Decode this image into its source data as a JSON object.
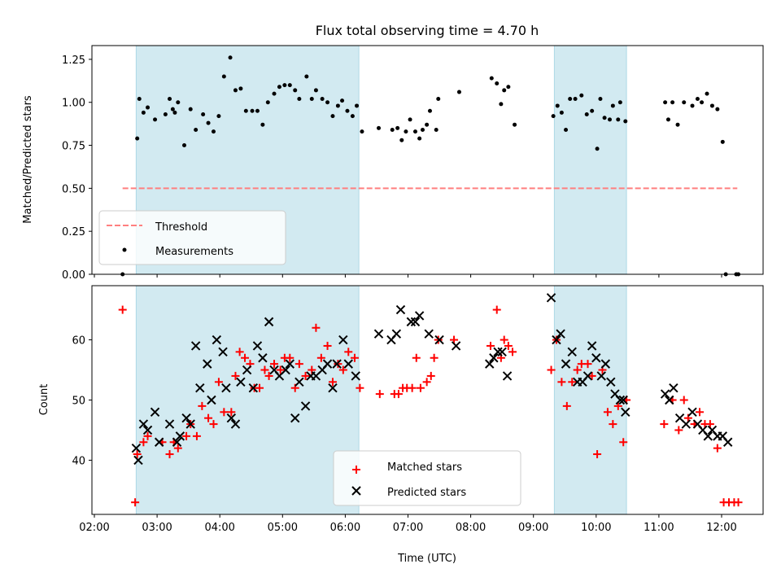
{
  "chart_data": [
    {
      "type": "scatter",
      "title": "Flux total observing time = 4.70 h",
      "xlabel": "",
      "ylabel": "Matched/Predicted stars",
      "xlim": [
        "02:00",
        "12:45"
      ],
      "ylim": [
        0,
        1.33
      ],
      "yticks": [
        "0.00",
        "0.25",
        "0.50",
        "0.75",
        "1.00",
        "1.25"
      ],
      "shaded_intervals": [
        [
          "02:40",
          "06:13"
        ],
        [
          "09:20",
          "10:29"
        ]
      ],
      "shade_color": "#add8e6",
      "grid": false,
      "legend": "lower-left",
      "legend_entries": [
        "Threshold",
        "Measurements"
      ],
      "threshold": {
        "name": "Threshold",
        "y": 0.5,
        "x_range": [
          "02:27",
          "12:15"
        ],
        "color": "#ff7f7f",
        "style": "dashed"
      },
      "series": [
        {
          "name": "Measurements",
          "color": "#000000",
          "marker": "dot",
          "x": [
            "02:27",
            "02:41",
            "02:43",
            "02:47",
            "02:51",
            "02:58",
            "03:08",
            "03:12",
            "03:15",
            "03:17",
            "03:20",
            "03:26",
            "03:32",
            "03:37",
            "03:44",
            "03:49",
            "03:54",
            "03:59",
            "04:04",
            "04:10",
            "04:15",
            "04:20",
            "04:25",
            "04:31",
            "04:36",
            "04:41",
            "04:46",
            "04:52",
            "04:57",
            "05:02",
            "05:07",
            "05:12",
            "05:16",
            "05:23",
            "05:28",
            "05:32",
            "05:38",
            "05:43",
            "05:48",
            "05:53",
            "05:57",
            "06:02",
            "06:07",
            "06:11",
            "06:16",
            "06:32",
            "06:45",
            "06:50",
            "06:54",
            "06:58",
            "07:02",
            "07:07",
            "07:11",
            "07:14",
            "07:18",
            "07:21",
            "07:27",
            "07:29",
            "07:49",
            "08:20",
            "08:25",
            "08:29",
            "08:32",
            "08:36",
            "08:42",
            "09:19",
            "09:23",
            "09:27",
            "09:31",
            "09:35",
            "09:40",
            "09:46",
            "09:51",
            "09:56",
            "10:01",
            "10:04",
            "10:08",
            "10:13",
            "10:16",
            "10:21",
            "10:23",
            "10:28",
            "11:06",
            "11:09",
            "11:13",
            "11:18",
            "11:24",
            "11:32",
            "11:37",
            "11:41",
            "11:46",
            "11:51",
            "11:56",
            "12:01",
            "12:04",
            "12:14",
            "12:16"
          ],
          "y": [
            0.0,
            0.79,
            1.02,
            0.94,
            0.97,
            0.9,
            0.93,
            1.02,
            0.96,
            0.94,
            1.0,
            0.75,
            0.96,
            0.84,
            0.93,
            0.88,
            0.83,
            0.92,
            1.15,
            1.26,
            1.07,
            1.08,
            0.95,
            0.95,
            0.95,
            0.87,
            1.0,
            1.05,
            1.09,
            1.1,
            1.1,
            1.07,
            1.02,
            1.15,
            1.02,
            1.07,
            1.02,
            1.0,
            0.92,
            0.98,
            1.01,
            0.95,
            0.92,
            0.98,
            0.83,
            0.85,
            0.84,
            0.85,
            0.78,
            0.83,
            0.9,
            0.83,
            0.79,
            0.84,
            0.87,
            0.95,
            0.84,
            1.02,
            1.06,
            1.14,
            1.11,
            0.99,
            1.07,
            1.09,
            0.87,
            0.92,
            0.98,
            0.94,
            0.84,
            1.02,
            1.02,
            1.04,
            0.93,
            0.95,
            0.73,
            1.02,
            0.91,
            0.9,
            0.98,
            0.9,
            1.0,
            0.89,
            1.0,
            0.9,
            1.0,
            0.87,
            1.0,
            0.98,
            1.02,
            1.0,
            1.05,
            0.98,
            0.96,
            0.77,
            0.0,
            0.0,
            0.0
          ]
        }
      ]
    },
    {
      "type": "scatter",
      "title": "",
      "xlabel": "Time (UTC)",
      "ylabel": "Count",
      "xlim": [
        "02:00",
        "12:45"
      ],
      "ylim": [
        31,
        69
      ],
      "yticks": [
        "40",
        "50",
        "60"
      ],
      "xticks": [
        "02:00",
        "03:00",
        "04:00",
        "05:00",
        "06:00",
        "07:00",
        "08:00",
        "09:00",
        "10:00",
        "11:00",
        "12:00"
      ],
      "shaded_intervals": [
        [
          "02:40",
          "06:13"
        ],
        [
          "09:20",
          "10:29"
        ]
      ],
      "shade_color": "#add8e6",
      "grid": false,
      "legend": "lower-center",
      "legend_entries": [
        "Matched stars",
        "Predicted stars"
      ],
      "series": [
        {
          "name": "Matched stars",
          "color": "#ff0000",
          "marker": "plus",
          "x": [
            "02:27",
            "02:39",
            "02:41",
            "02:47",
            "02:51",
            "03:05",
            "03:12",
            "03:16",
            "03:20",
            "03:28",
            "03:32",
            "03:38",
            "03:43",
            "03:49",
            "03:54",
            "03:59",
            "04:04",
            "04:11",
            "04:15",
            "04:19",
            "04:24",
            "04:29",
            "04:33",
            "04:38",
            "04:43",
            "04:47",
            "04:52",
            "04:58",
            "05:02",
            "05:07",
            "05:12",
            "05:16",
            "05:22",
            "05:28",
            "05:32",
            "05:37",
            "05:43",
            "05:48",
            "05:53",
            "05:58",
            "06:03",
            "06:09",
            "06:14",
            "06:33",
            "06:47",
            "06:51",
            "06:55",
            "06:59",
            "07:04",
            "07:08",
            "07:12",
            "07:18",
            "07:22",
            "07:25",
            "07:29",
            "07:44",
            "08:19",
            "08:25",
            "08:29",
            "08:32",
            "08:36",
            "08:40",
            "09:17",
            "09:22",
            "09:27",
            "09:32",
            "09:37",
            "09:42",
            "09:46",
            "09:52",
            "09:56",
            "10:01",
            "10:06",
            "10:11",
            "10:16",
            "10:21",
            "10:26",
            "10:29",
            "11:05",
            "11:13",
            "11:19",
            "11:24",
            "11:28",
            "11:34",
            "11:39",
            "11:44",
            "11:49",
            "11:56",
            "12:02",
            "12:07",
            "12:12",
            "12:16"
          ],
          "y": [
            65,
            33,
            41,
            43,
            44,
            43,
            41,
            43,
            42,
            44,
            46,
            44,
            49,
            47,
            46,
            53,
            48,
            48,
            54,
            58,
            57,
            56,
            52,
            52,
            55,
            54,
            56,
            55,
            57,
            57,
            52,
            56,
            54,
            55,
            62,
            57,
            59,
            53,
            56,
            55,
            58,
            57,
            52,
            51,
            51,
            51,
            52,
            52,
            52,
            57,
            52,
            53,
            54,
            57,
            60,
            60,
            59,
            65,
            57,
            60,
            59,
            58,
            55,
            60,
            53,
            49,
            53,
            55,
            56,
            56,
            54,
            41,
            55,
            48,
            46,
            49,
            43,
            50,
            46,
            50,
            45,
            50,
            47,
            46,
            48,
            46,
            46,
            42,
            33,
            33,
            33,
            33
          ],
          "extra_points_comment": ""
        },
        {
          "name": "Predicted stars",
          "color": "#000000",
          "marker": "x",
          "x": [
            "02:40",
            "02:42",
            "02:47",
            "02:51",
            "02:58",
            "03:02",
            "03:12",
            "03:19",
            "03:22",
            "03:28",
            "03:32",
            "03:37",
            "03:41",
            "03:48",
            "03:52",
            "03:57",
            "04:03",
            "04:06",
            "04:11",
            "04:15",
            "04:20",
            "04:26",
            "04:32",
            "04:36",
            "04:41",
            "04:47",
            "04:52",
            "04:57",
            "05:03",
            "05:07",
            "05:12",
            "05:16",
            "05:22",
            "05:27",
            "05:32",
            "05:38",
            "05:43",
            "05:48",
            "05:52",
            "05:58",
            "06:03",
            "06:10",
            "06:32",
            "06:44",
            "06:49",
            "06:53",
            "07:03",
            "07:07",
            "07:11",
            "07:20",
            "07:30",
            "07:46",
            "08:18",
            "08:22",
            "08:26",
            "08:30",
            "08:35",
            "09:17",
            "09:22",
            "09:26",
            "09:31",
            "09:37",
            "09:42",
            "09:47",
            "09:52",
            "09:56",
            "10:00",
            "10:05",
            "10:09",
            "10:14",
            "10:18",
            "10:23",
            "10:26",
            "10:28",
            "11:06",
            "11:10",
            "11:14",
            "11:20",
            "11:26",
            "11:32",
            "11:37",
            "11:42",
            "11:47",
            "11:51",
            "11:56",
            "12:01",
            "12:06"
          ],
          "y": [
            42,
            40,
            46,
            45,
            48,
            43,
            46,
            43,
            44,
            47,
            46,
            59,
            52,
            56,
            50,
            60,
            58,
            52,
            47,
            46,
            53,
            55,
            52,
            59,
            57,
            63,
            55,
            54,
            55,
            56,
            47,
            53,
            49,
            54,
            54,
            55,
            56,
            52,
            56,
            60,
            56,
            54,
            61,
            60,
            61,
            65,
            63,
            63,
            64,
            61,
            60,
            59,
            56,
            57,
            58,
            58,
            54,
            67,
            60,
            61,
            56,
            58,
            53,
            53,
            54,
            59,
            57,
            54,
            56,
            53,
            51,
            50,
            50,
            48,
            51,
            50,
            52,
            47,
            46,
            48,
            46,
            45,
            44,
            45,
            44,
            44,
            43
          ]
        }
      ]
    }
  ]
}
